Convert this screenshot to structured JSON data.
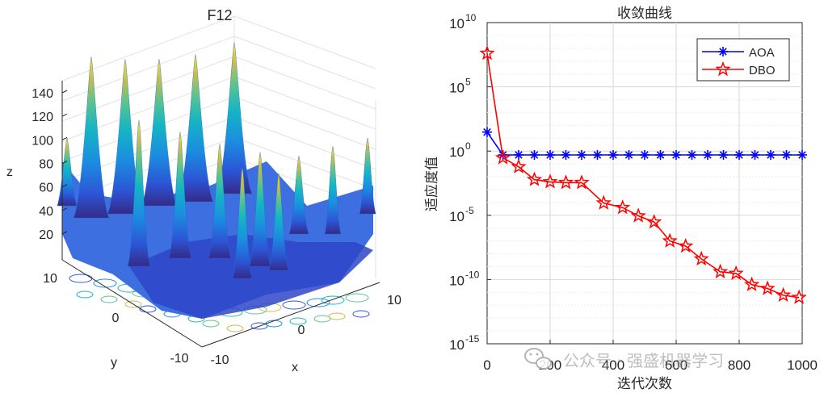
{
  "chart_data": [
    {
      "type": "surface3d",
      "title": "F12",
      "xlabel": "x",
      "ylabel": "y",
      "zlabel": "z",
      "x_ticks": [
        "-10",
        "0",
        "10"
      ],
      "y_ticks": [
        "-10",
        "0",
        "10"
      ],
      "z_ticks": [
        "20",
        "40",
        "60",
        "80",
        "100",
        "120",
        "140"
      ],
      "xlim": [
        -10,
        10
      ],
      "ylim": [
        -10,
        10
      ],
      "zlim": [
        0,
        150
      ],
      "colormap": "parula",
      "contour_on_floor": true,
      "grid": true
    },
    {
      "type": "line",
      "title": "收敛曲线",
      "xlabel": "迭代次数",
      "ylabel": "适应度值",
      "yscale": "log",
      "xlim": [
        0,
        1000
      ],
      "ylim": [
        1e-15,
        10000000000.0
      ],
      "x_ticks": [
        "0",
        "200",
        "400",
        "600",
        "800",
        "1000"
      ],
      "y_ticks": [
        {
          "base": "10",
          "exp": "10",
          "value": 10000000000.0
        },
        {
          "base": "10",
          "exp": "5",
          "value": 100000.0
        },
        {
          "base": "10",
          "exp": "0",
          "value": 1
        },
        {
          "base": "10",
          "exp": "-5",
          "value": 1e-05
        },
        {
          "base": "10",
          "exp": "-10",
          "value": 1e-10
        },
        {
          "base": "10",
          "exp": "-15",
          "value": 1e-15
        }
      ],
      "grid": true,
      "legend_position": "top-right",
      "series": [
        {
          "name": "AOA",
          "color": "#0000ff",
          "marker": "asterisk",
          "x": [
            0,
            50,
            100,
            150,
            200,
            250,
            300,
            350,
            400,
            450,
            500,
            550,
            600,
            650,
            700,
            750,
            800,
            850,
            900,
            950,
            1000
          ],
          "y": [
            30,
            0.5,
            0.5,
            0.5,
            0.5,
            0.5,
            0.5,
            0.5,
            0.5,
            0.5,
            0.5,
            0.5,
            0.5,
            0.5,
            0.5,
            0.5,
            0.5,
            0.5,
            0.5,
            0.5,
            0.5
          ]
        },
        {
          "name": "DBO",
          "color": "#ff0000",
          "marker": "pentagram",
          "x": [
            0,
            50,
            100,
            150,
            200,
            250,
            300,
            370,
            430,
            480,
            530,
            580,
            630,
            680,
            740,
            790,
            840,
            890,
            940,
            990
          ],
          "y": [
            40000000.0,
            0.3,
            0.06,
            0.006,
            0.004,
            0.0035,
            0.0035,
            9e-05,
            4e-05,
            9e-06,
            3e-06,
            1e-07,
            4e-08,
            4e-09,
            4e-10,
            3e-10,
            4e-11,
            2e-11,
            6e-12,
            4e-12
          ]
        }
      ]
    }
  ],
  "watermark": {
    "text": "公众号 · 强盛机器学习",
    "icon": "wechat-icon"
  }
}
